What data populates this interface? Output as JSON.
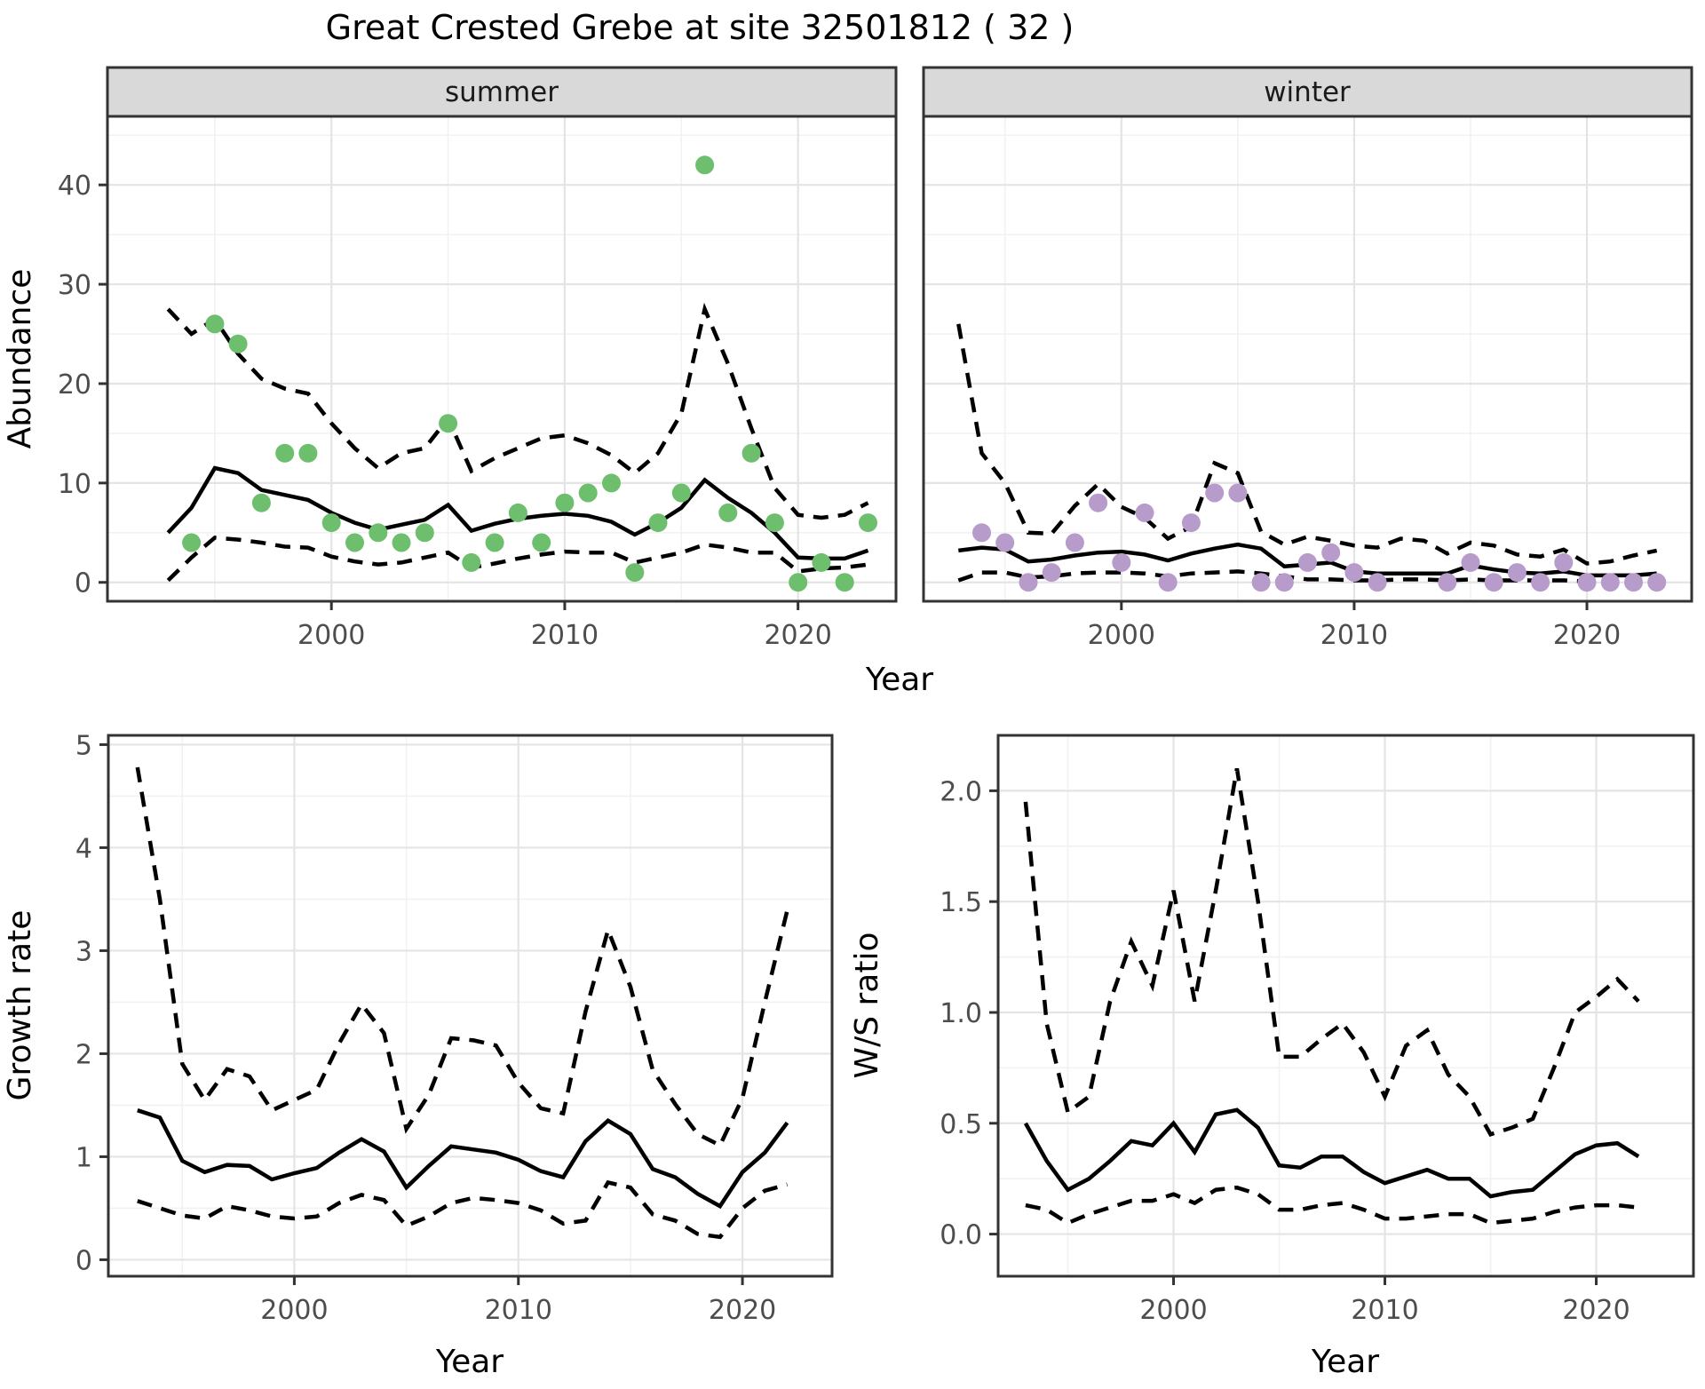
{
  "title": "Great Crested Grebe at site 32501812 ( 32 )",
  "labels": {
    "abundance": "Abundance",
    "growth": "Growth rate",
    "ws": "W/S ratio",
    "year": "Year"
  },
  "colors": {
    "summer_points": "#6dbe6d",
    "winter_points": "#b79bcb",
    "fit_line": "#000000",
    "ci_line": "#000000",
    "strip_fill": "#d9d9d9",
    "panel_border": "#333333",
    "grid_major": "#e4e4e4",
    "grid_minor": "#f2f2f2",
    "tick_text": "#4d4d4d"
  },
  "chart_data": [
    {
      "key": "summer",
      "type": "line+scatter",
      "strip": "summer",
      "x_domain": [
        1990.4,
        2024.2
      ],
      "y_domain": [
        -1.9,
        46.9
      ],
      "x_major": [
        2000,
        2010,
        2020
      ],
      "x_major_labels": [
        "2000",
        "2010",
        "2020"
      ],
      "x_minor": [
        1995,
        2005,
        2015
      ],
      "y_major": [
        0,
        10,
        20,
        30,
        40
      ],
      "y_major_labels": [
        "0",
        "10",
        "20",
        "30",
        "40"
      ],
      "y_minor": [
        5,
        15,
        25,
        35,
        45
      ],
      "show_y_tick_labels": true,
      "years": [
        1993,
        1994,
        1995,
        1996,
        1997,
        1998,
        1999,
        2000,
        2001,
        2002,
        2003,
        2004,
        2005,
        2006,
        2007,
        2008,
        2009,
        2010,
        2011,
        2012,
        2013,
        2014,
        2015,
        2016,
        2017,
        2018,
        2019,
        2020,
        2021,
        2022,
        2023
      ],
      "fit": [
        5.0,
        7.5,
        11.5,
        11.0,
        9.3,
        8.8,
        8.3,
        7.0,
        6.0,
        5.3,
        5.8,
        6.3,
        7.8,
        5.2,
        5.9,
        6.4,
        6.7,
        6.9,
        6.7,
        6.1,
        4.8,
        6.0,
        7.5,
        10.3,
        8.5,
        7.0,
        5.0,
        2.5,
        2.4,
        2.4,
        3.2
      ],
      "upper": [
        27.5,
        25.0,
        26.5,
        23.0,
        20.5,
        19.5,
        19.0,
        16.0,
        13.5,
        11.5,
        13.0,
        13.5,
        16.5,
        11.2,
        12.5,
        13.5,
        14.5,
        14.8,
        14.0,
        12.8,
        11.0,
        13.0,
        17.0,
        27.5,
        22.0,
        15.5,
        9.5,
        6.8,
        6.5,
        6.8,
        8.0
      ],
      "lower": [
        0.2,
        2.5,
        4.5,
        4.3,
        4.0,
        3.6,
        3.5,
        2.6,
        2.1,
        1.8,
        2.0,
        2.5,
        3.0,
        1.5,
        1.9,
        2.4,
        2.8,
        3.1,
        3.0,
        3.0,
        2.0,
        2.5,
        3.0,
        3.8,
        3.5,
        3.0,
        3.0,
        1.1,
        1.4,
        1.5,
        1.8
      ],
      "obs_years": [
        1994,
        1995,
        1996,
        1997,
        1998,
        1999,
        2000,
        2001,
        2002,
        2003,
        2004,
        2005,
        2006,
        2007,
        2008,
        2009,
        2010,
        2011,
        2012,
        2013,
        2014,
        2015,
        2016,
        2017,
        2018,
        2019,
        2020,
        2021,
        2022,
        2023
      ],
      "obs": [
        4,
        26,
        24,
        8,
        13,
        13,
        6,
        4,
        5,
        4,
        5,
        16,
        2,
        4,
        7,
        4,
        8,
        9,
        10,
        1,
        6,
        9,
        42,
        7,
        13,
        6,
        0,
        2,
        0,
        6
      ],
      "point_color": "#6dbe6d"
    },
    {
      "key": "winter",
      "type": "line+scatter",
      "strip": "winter",
      "x_domain": [
        1991.5,
        2024.5
      ],
      "y_domain": [
        -1.9,
        46.9
      ],
      "x_major": [
        2000,
        2010,
        2020
      ],
      "x_major_labels": [
        "2000",
        "2010",
        "2020"
      ],
      "x_minor": [
        1995,
        2005,
        2015
      ],
      "y_major": [
        0,
        10,
        20,
        30,
        40
      ],
      "y_major_labels": [
        "0",
        "10",
        "20",
        "30",
        "40"
      ],
      "y_minor": [
        5,
        15,
        25,
        35,
        45
      ],
      "show_y_tick_labels": false,
      "years": [
        1993,
        1994,
        1995,
        1996,
        1997,
        1998,
        1999,
        2000,
        2001,
        2002,
        2003,
        2004,
        2005,
        2006,
        2007,
        2008,
        2009,
        2010,
        2011,
        2012,
        2013,
        2014,
        2015,
        2016,
        2017,
        2018,
        2019,
        2020,
        2021,
        2022,
        2023
      ],
      "fit": [
        3.2,
        3.5,
        3.3,
        2.1,
        2.3,
        2.7,
        3.0,
        3.1,
        2.8,
        2.2,
        2.9,
        3.4,
        3.8,
        3.4,
        1.6,
        1.8,
        2.0,
        1.1,
        0.9,
        0.9,
        0.9,
        0.9,
        1.7,
        1.3,
        1.0,
        0.9,
        1.1,
        0.7,
        0.7,
        0.7,
        0.9
      ],
      "upper": [
        26.0,
        13.0,
        10.0,
        5.0,
        4.9,
        7.7,
        9.9,
        7.6,
        6.5,
        4.4,
        5.6,
        12.0,
        11.0,
        5.1,
        3.8,
        4.6,
        4.2,
        3.7,
        3.5,
        4.4,
        4.2,
        2.9,
        4.0,
        3.7,
        2.8,
        2.6,
        3.3,
        1.9,
        2.1,
        2.7,
        3.2
      ],
      "lower": [
        0.2,
        1.0,
        1.0,
        0.5,
        0.6,
        0.9,
        1.0,
        1.0,
        0.9,
        0.6,
        0.9,
        1.0,
        1.1,
        0.9,
        0.6,
        0.3,
        0.3,
        0.2,
        0.2,
        0.3,
        0.3,
        0.2,
        0.3,
        0.2,
        0.2,
        0.2,
        0.2,
        0.1,
        0.1,
        0.2,
        0.2
      ],
      "obs_years": [
        1994,
        1995,
        1996,
        1997,
        1998,
        1999,
        2000,
        2001,
        2002,
        2003,
        2004,
        2005,
        2006,
        2007,
        2008,
        2009,
        2010,
        2011,
        2012,
        2013,
        2014,
        2015,
        2016,
        2017,
        2018,
        2019,
        2020,
        2021,
        2022,
        2023
      ],
      "obs": [
        5,
        4,
        0,
        1,
        4,
        8,
        2,
        7,
        0,
        6,
        9,
        9,
        0,
        0,
        2,
        3,
        1,
        0,
        null,
        null,
        0,
        2,
        0,
        1,
        0,
        2,
        0,
        0,
        0,
        0
      ],
      "point_color": "#b79bcb"
    },
    {
      "key": "growth",
      "type": "line",
      "strip": null,
      "x_domain": [
        1991.7,
        2024.0
      ],
      "y_domain": [
        -0.16,
        5.09
      ],
      "x_major": [
        2000,
        2010,
        2020
      ],
      "x_major_labels": [
        "2000",
        "2010",
        "2020"
      ],
      "x_minor": [
        1995,
        2005,
        2015
      ],
      "y_major": [
        0,
        1,
        2,
        3,
        4,
        5
      ],
      "y_major_labels": [
        "0",
        "1",
        "2",
        "3",
        "4",
        "5"
      ],
      "y_minor": [
        0.5,
        1.5,
        2.5,
        3.5,
        4.5
      ],
      "show_y_tick_labels": true,
      "years": [
        1993,
        1994,
        1995,
        1996,
        1997,
        1998,
        1999,
        2000,
        2001,
        2002,
        2003,
        2004,
        2005,
        2006,
        2007,
        2008,
        2009,
        2010,
        2011,
        2012,
        2013,
        2014,
        2015,
        2016,
        2017,
        2018,
        2019,
        2020,
        2021,
        2022
      ],
      "fit": [
        1.45,
        1.38,
        0.96,
        0.85,
        0.92,
        0.91,
        0.78,
        0.84,
        0.89,
        1.04,
        1.17,
        1.05,
        0.7,
        0.91,
        1.1,
        1.07,
        1.04,
        0.97,
        0.86,
        0.8,
        1.15,
        1.35,
        1.22,
        0.88,
        0.8,
        0.64,
        0.52,
        0.85,
        1.04,
        1.33
      ],
      "upper": [
        4.78,
        3.5,
        1.9,
        1.55,
        1.85,
        1.78,
        1.45,
        1.55,
        1.65,
        2.1,
        2.48,
        2.2,
        1.27,
        1.6,
        2.15,
        2.13,
        2.08,
        1.72,
        1.47,
        1.42,
        2.41,
        3.2,
        2.65,
        1.84,
        1.51,
        1.22,
        1.11,
        1.57,
        2.5,
        3.39
      ],
      "lower": [
        0.57,
        0.5,
        0.43,
        0.4,
        0.52,
        0.48,
        0.42,
        0.4,
        0.42,
        0.55,
        0.63,
        0.58,
        0.33,
        0.42,
        0.55,
        0.6,
        0.58,
        0.55,
        0.48,
        0.35,
        0.38,
        0.75,
        0.7,
        0.44,
        0.38,
        0.25,
        0.22,
        0.5,
        0.67,
        0.73
      ],
      "obs_years": [],
      "obs": [],
      "point_color": null
    },
    {
      "key": "ws",
      "type": "line",
      "strip": null,
      "x_domain": [
        1991.7,
        2024.6
      ],
      "y_domain": [
        -0.19,
        2.25
      ],
      "x_major": [
        2000,
        2010,
        2020
      ],
      "x_major_labels": [
        "2000",
        "2010",
        "2020"
      ],
      "x_minor": [
        1995,
        2005,
        2015
      ],
      "y_major": [
        0,
        0.5,
        1.0,
        1.5,
        2.0
      ],
      "y_major_labels": [
        "0.0",
        "0.5",
        "1.0",
        "1.5",
        "2.0"
      ],
      "y_minor": [
        0.25,
        0.75,
        1.25,
        1.75
      ],
      "show_y_tick_labels": true,
      "years": [
        1993,
        1994,
        1995,
        1996,
        1997,
        1998,
        1999,
        2000,
        2001,
        2002,
        2003,
        2004,
        2005,
        2006,
        2007,
        2008,
        2009,
        2010,
        2011,
        2012,
        2013,
        2014,
        2015,
        2016,
        2017,
        2018,
        2019,
        2020,
        2021,
        2022
      ],
      "fit": [
        0.5,
        0.33,
        0.2,
        0.25,
        0.33,
        0.42,
        0.4,
        0.5,
        0.37,
        0.54,
        0.56,
        0.48,
        0.31,
        0.3,
        0.35,
        0.35,
        0.28,
        0.23,
        0.26,
        0.29,
        0.25,
        0.25,
        0.17,
        0.19,
        0.2,
        0.28,
        0.36,
        0.4,
        0.41,
        0.35
      ],
      "upper": [
        1.95,
        0.95,
        0.55,
        0.62,
        1.05,
        1.32,
        1.12,
        1.55,
        1.05,
        1.55,
        2.1,
        1.5,
        0.8,
        0.8,
        0.88,
        0.95,
        0.82,
        0.62,
        0.85,
        0.92,
        0.72,
        0.62,
        0.45,
        0.48,
        0.52,
        0.75,
        1.0,
        1.07,
        1.15,
        1.05
      ],
      "lower": [
        0.13,
        0.11,
        0.05,
        0.09,
        0.12,
        0.15,
        0.15,
        0.18,
        0.14,
        0.2,
        0.21,
        0.18,
        0.11,
        0.11,
        0.13,
        0.14,
        0.11,
        0.07,
        0.07,
        0.08,
        0.09,
        0.09,
        0.05,
        0.06,
        0.07,
        0.1,
        0.12,
        0.13,
        0.13,
        0.12
      ],
      "obs_years": [],
      "obs": [],
      "point_color": null
    }
  ]
}
